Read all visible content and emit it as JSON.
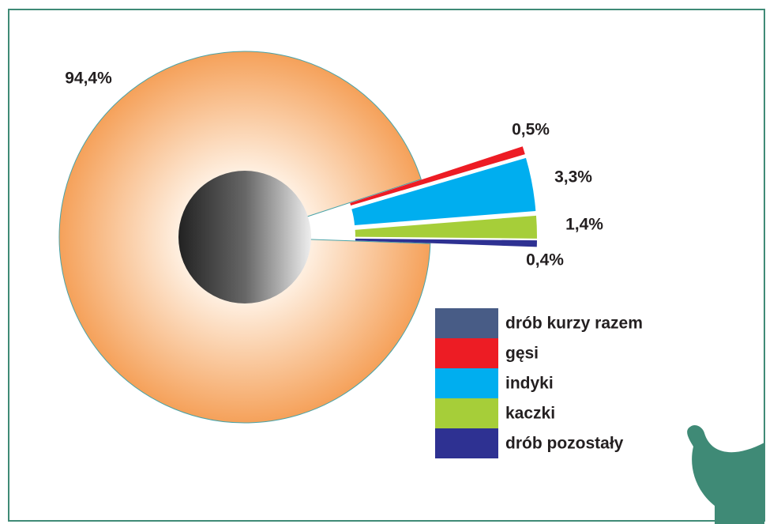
{
  "chart_data": {
    "type": "pie",
    "categories": [
      "drób kurzy razem",
      "gęsi",
      "indyki",
      "kaczki",
      "drób pozostały"
    ],
    "values": [
      94.4,
      0.5,
      3.3,
      1.4,
      0.4
    ],
    "value_labels": [
      "94,4%",
      "0,5%",
      "3,3%",
      "1,4%",
      "0,4%"
    ],
    "colors": [
      "#485c86",
      "#ed1c24",
      "#00aeef",
      "#a6ce39",
      "#2e3192"
    ],
    "slice_colors": [
      "#f6a45f",
      "#ed1c24",
      "#00aeef",
      "#a6ce39",
      "#2e3192"
    ]
  }
}
